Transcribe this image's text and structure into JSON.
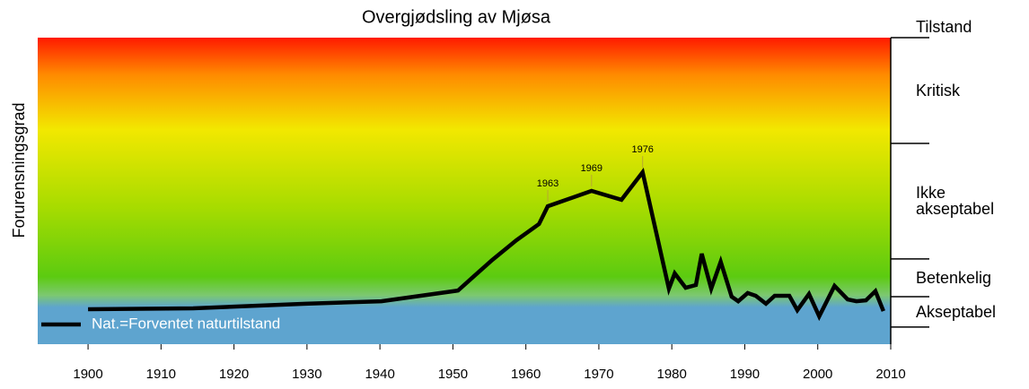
{
  "chart_data": {
    "type": "line",
    "title": "Overgjødsling av Mjøsa",
    "y_label": "Forurensningsgrad",
    "xlim": [
      1893.1,
      2010
    ],
    "ylim": [
      0,
      100
    ],
    "xticks": [
      1900,
      1910,
      1920,
      1930,
      1940,
      1950,
      1960,
      1970,
      1980,
      1990,
      2000,
      2010
    ],
    "series": [
      {
        "name": "Nat.=Forventet naturtilstand",
        "color": "#000000",
        "x": [
          1900,
          1914.4,
          1929.8,
          1940.2,
          1950.7,
          1952.9,
          1955.4,
          1958.7,
          1961.8,
          1963,
          1969,
          1973.1,
          1976,
          1979.6,
          1980.4,
          1981.9,
          1983.3,
          1984.1,
          1985.4,
          1986.7,
          1988.2,
          1989.1,
          1990.4,
          1991.5,
          1992.9,
          1994.1,
          1996.1,
          1997.2,
          1998.8,
          2000.2,
          2002.3,
          2004.1,
          2005.3,
          2006.6,
          2007.9,
          2009.0
        ],
        "values": [
          11.4,
          11.7,
          13.2,
          14.0,
          17.5,
          22.2,
          27.5,
          33.9,
          39.2,
          45.0,
          50.0,
          47.1,
          56.1,
          18.1,
          23.1,
          18.4,
          19.3,
          29.5,
          18.1,
          26.9,
          15.5,
          14.0,
          16.7,
          15.8,
          13.2,
          15.8,
          15.8,
          11.1,
          16.4,
          9.1,
          19.0,
          14.6,
          14.0,
          14.3,
          17.3,
          10.8
        ]
      }
    ],
    "annotations": [
      1963,
      1969,
      1976
    ],
    "zone_header": "Tilstand",
    "zones": [
      {
        "label": "Kritisk",
        "from": 65.5,
        "to": 100
      },
      {
        "label": "Ikke akseptabel",
        "from": 27.8,
        "to": 65.5
      },
      {
        "label": "Betenkelig",
        "from": 15.5,
        "to": 27.8
      },
      {
        "label": "Akseptabel",
        "from": 5.6,
        "to": 15.5
      }
    ]
  }
}
